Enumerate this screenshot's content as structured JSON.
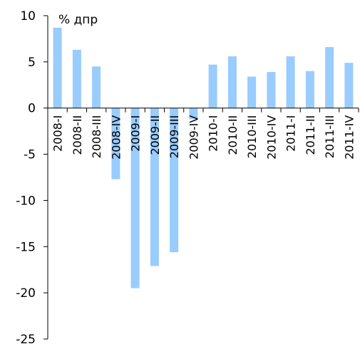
{
  "chart_data": {
    "type": "bar",
    "title": "",
    "unit_label": "% дпр",
    "xlabel": "",
    "ylabel": "",
    "ylim": [
      -25,
      10
    ],
    "yticks": [
      10,
      5,
      0,
      -5,
      -10,
      -15,
      -20,
      -25
    ],
    "grid": false,
    "bar_color": "#99ccff",
    "categories": [
      "2008-I",
      "2008-II",
      "2008-III",
      "2008-IV",
      "2009-I",
      "2009-II",
      "2009-III",
      "2009-IV",
      "2010-I",
      "2010-II",
      "2010-III",
      "2010-IV",
      "2011-I",
      "2011-II",
      "2011-III",
      "2011-IV"
    ],
    "values": [
      8.7,
      6.3,
      4.5,
      -7.7,
      -19.5,
      -17.1,
      -15.6,
      -1.2,
      4.7,
      5.6,
      3.4,
      3.9,
      5.6,
      4.0,
      6.6,
      4.9
    ]
  }
}
